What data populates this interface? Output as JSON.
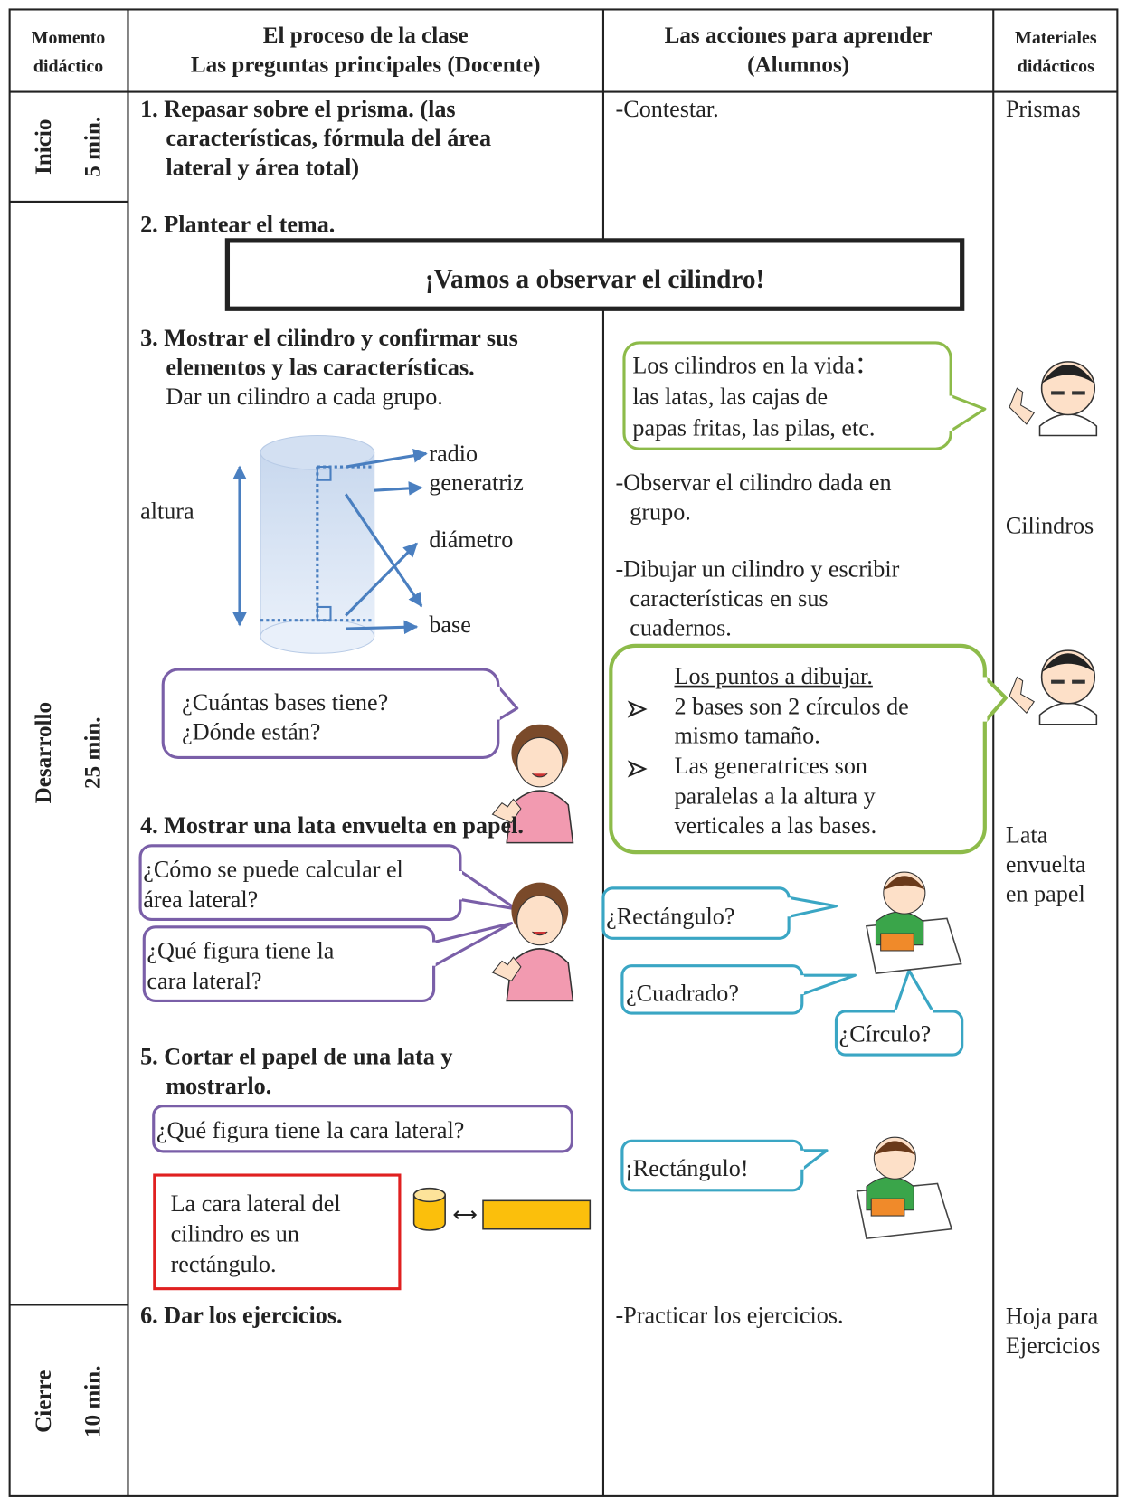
{
  "header": {
    "momento": [
      "Momento",
      "didáctico"
    ],
    "proceso": [
      "El proceso de la clase",
      "Las preguntas principales (Docente)"
    ],
    "acciones": [
      "Las acciones para aprender",
      "(Alumnos)"
    ],
    "materiales": [
      "Materiales",
      "didácticos"
    ]
  },
  "stages": [
    {
      "name": "Inicio",
      "time": "5 min."
    },
    {
      "name": "Desarrollo",
      "time": "25 min."
    },
    {
      "name": "Cierre",
      "time": "10 min."
    }
  ],
  "proceso": {
    "step1": [
      "1. Repasar sobre el prisma. (las",
      "características, fórmula del área",
      "lateral y área total)"
    ],
    "step2": "2. Plantear el tema.",
    "theme": "¡Vamos a observar el cilindro!",
    "step3": [
      "3. Mostrar el cilindro y confirmar sus",
      "elementos y las características."
    ],
    "step3_note": "Dar un cilindro a cada grupo.",
    "diagram": {
      "altura": "altura",
      "radio": "radio",
      "generatriz": "generatriz",
      "diametro": "diámetro",
      "base": "base"
    },
    "bubble1": [
      "¿Cuántas bases tiene?",
      "¿Dónde están?"
    ],
    "step4": "4. Mostrar una lata envuelta en papel.",
    "bubble2": [
      "¿Cómo se puede calcular el",
      "área lateral?"
    ],
    "bubble3": [
      "¿Qué figura tiene la",
      "cara lateral?"
    ],
    "step5": [
      "5. Cortar el papel de una lata y",
      "mostrarlo."
    ],
    "bubble4": "¿Qué figura tiene la cara lateral?",
    "conclusion": [
      "La cara lateral del",
      "cilindro es un",
      "rectángulo."
    ],
    "step6": "6. Dar los ejercicios."
  },
  "acciones": {
    "a1": "-Contestar.",
    "bubble_life": [
      "Los cilindros en la vida：",
      "las latas, las cajas de",
      "papas fritas, las pilas, etc."
    ],
    "a2": [
      "-Observar el cilindro dada en",
      "grupo."
    ],
    "a3": [
      "-Dibujar un cilindro y escribir",
      "características en sus",
      "cuadernos."
    ],
    "points": {
      "title": "Los puntos a dibujar.",
      "items": [
        [
          "2 bases son 2 círculos de",
          "mismo tamaño."
        ],
        [
          "Las generatrices son",
          "paralelas a la altura y",
          "verticales a las bases."
        ]
      ]
    },
    "answers": [
      "¿Rectángulo?",
      "¿Cuadrado?",
      "¿Círculo?"
    ],
    "answer_final": "¡Rectángulo!",
    "a4": "-Practicar los ejercicios."
  },
  "materiales": {
    "m1": "Prismas",
    "m2": "Cilindros",
    "m3": [
      "Lata",
      "envuelta",
      "en papel"
    ],
    "m4": [
      "Hoja para",
      "Ejercicios"
    ]
  }
}
